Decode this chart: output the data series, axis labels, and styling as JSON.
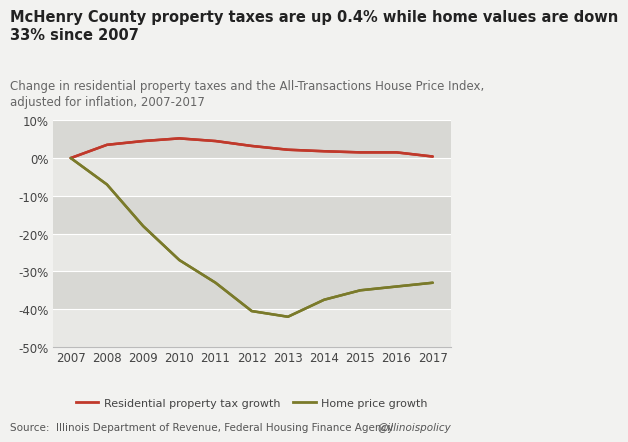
{
  "years": [
    2007,
    2008,
    2009,
    2010,
    2011,
    2012,
    2013,
    2014,
    2015,
    2016,
    2017
  ],
  "tax_growth": [
    0.0,
    3.5,
    4.5,
    5.2,
    4.5,
    3.2,
    2.2,
    1.8,
    1.5,
    1.5,
    0.4
  ],
  "home_growth": [
    0.0,
    -7.0,
    -18.0,
    -27.0,
    -33.0,
    -40.5,
    -42.0,
    -37.5,
    -35.0,
    -34.0,
    -33.0
  ],
  "tax_color": "#c0392b",
  "home_color": "#7a7a2a",
  "title": "McHenry County property taxes are up 0.4% while home values are down\n33% since 2007",
  "subtitle": "Change in residential property taxes and the All-Transactions House Price Index,\nadjusted for inflation, 2007-2017",
  "source": "Source:  Illinois Department of Revenue, Federal Housing Finance Agency",
  "watermark": "@illinoispolicy",
  "ylim": [
    -50,
    10
  ],
  "yticks": [
    -50,
    -40,
    -30,
    -20,
    -10,
    0,
    10
  ],
  "bg_color": "#f2f2f0",
  "plot_bg_color": "#e8e8e5",
  "legend_label_tax": "Residential property tax growth",
  "legend_label_home": "Home price growth",
  "title_fontsize": 10.5,
  "subtitle_fontsize": 8.5,
  "axis_fontsize": 8.5,
  "source_fontsize": 7.5
}
